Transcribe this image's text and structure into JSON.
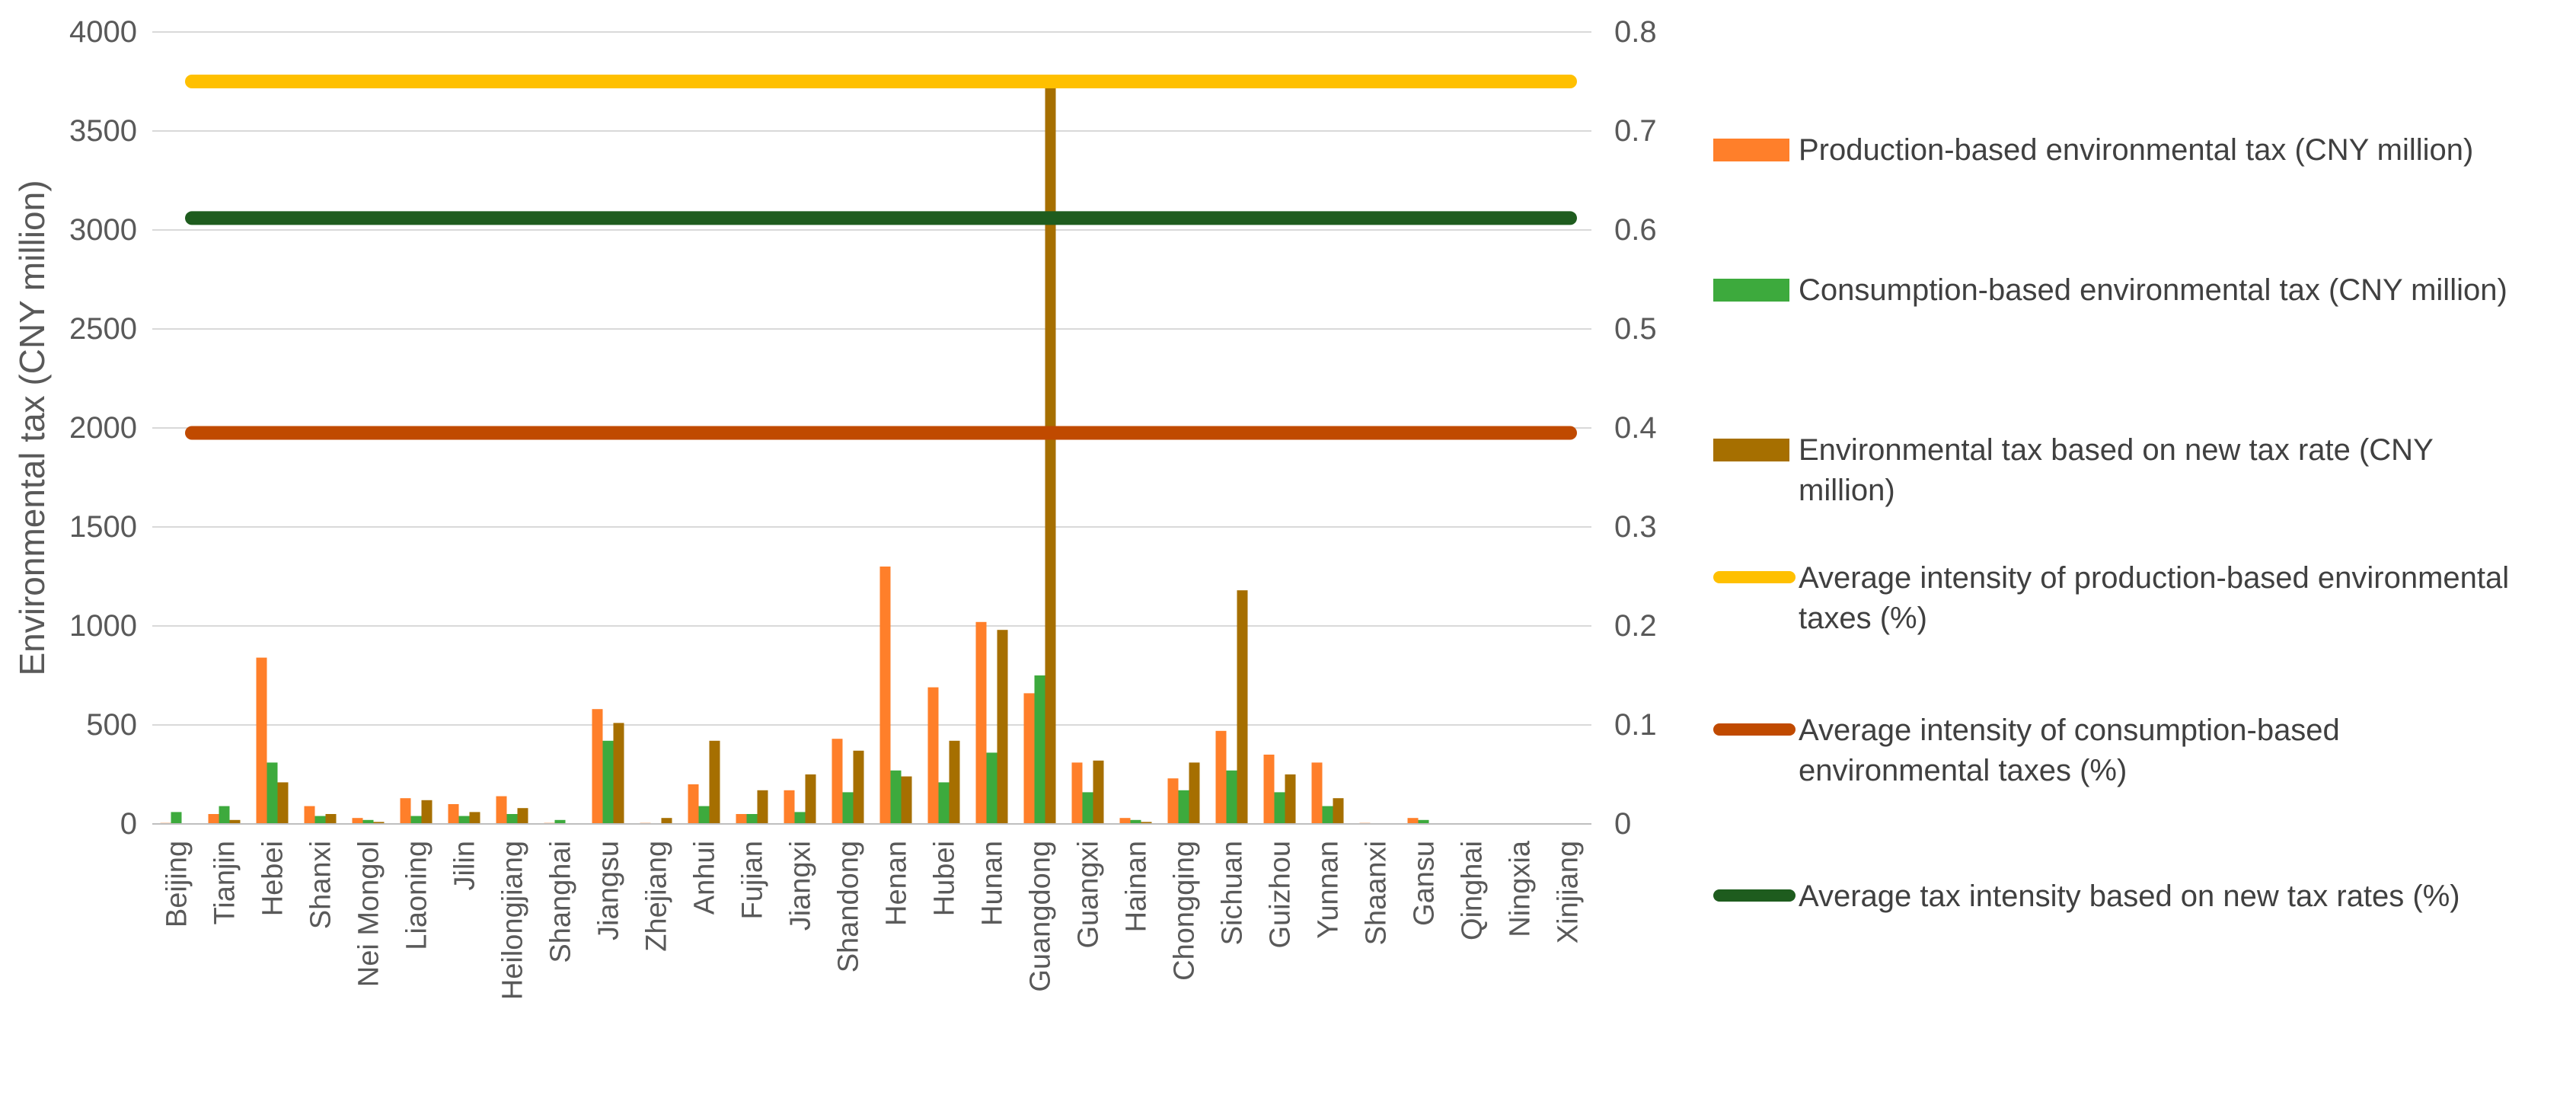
{
  "chart_data": {
    "type": "bar",
    "ylabel": "Environmental tax (CNY million)",
    "ylim": [
      0,
      4000
    ],
    "yticks": [
      0,
      500,
      1000,
      1500,
      2000,
      2500,
      3000,
      3500,
      4000
    ],
    "y2lim": [
      0,
      0.8
    ],
    "y2ticks": [
      "0",
      "0.1",
      "0.2",
      "0.3",
      "0.4",
      "0.5",
      "0.6",
      "0.7",
      "0.8"
    ],
    "categories": [
      "Beijing",
      "Tianjin",
      "Hebei",
      "Shanxi",
      "Nei Mongol",
      "Liaoning",
      "Jilin",
      "Heilongjiang",
      "Shanghai",
      "Jiangsu",
      "Zhejiang",
      "Anhui",
      "Fujian",
      "Jiangxi",
      "Shandong",
      "Henan",
      "Hubei",
      "Hunan",
      "Guangdong",
      "Guangxi",
      "Hainan",
      "Chongqing",
      "Sichuan",
      "Guizhou",
      "Yunnan",
      "Shaanxi",
      "Gansu",
      "Qinghai",
      "Ningxia",
      "Xinjiang"
    ],
    "series": [
      {
        "name": "Production-based environmental tax (CNY million)",
        "color": "#FF7F2A",
        "values": [
          5,
          50,
          840,
          90,
          30,
          130,
          100,
          140,
          5,
          580,
          5,
          200,
          50,
          170,
          430,
          1300,
          690,
          1020,
          660,
          310,
          30,
          230,
          470,
          350,
          310,
          5,
          30,
          0,
          0,
          0
        ]
      },
      {
        "name": "Consumption-based environmental tax (CNY million)",
        "color": "#3DAA3D",
        "values": [
          60,
          90,
          310,
          40,
          20,
          40,
          40,
          50,
          20,
          420,
          0,
          90,
          50,
          60,
          160,
          270,
          210,
          360,
          750,
          160,
          20,
          170,
          270,
          160,
          90,
          0,
          20,
          0,
          0,
          0
        ]
      },
      {
        "name": "Environmental tax based on new tax rate (CNY million)",
        "color": "#A66F00",
        "values": [
          0,
          20,
          210,
          50,
          10,
          120,
          60,
          80,
          0,
          510,
          30,
          420,
          170,
          250,
          370,
          240,
          420,
          980,
          3720,
          320,
          10,
          310,
          1180,
          250,
          130,
          0,
          0,
          0,
          0,
          0
        ]
      }
    ],
    "lines": [
      {
        "name": "Average intensity of production-based environmental taxes (%)",
        "color": "#FFC000",
        "value": 0.75
      },
      {
        "name": "Average intensity of consumption-based environmental taxes (%)",
        "color": "#C04A00",
        "value": 0.395
      },
      {
        "name": "Average tax intensity based on new tax rates (%)",
        "color": "#1E5C1E",
        "value": 0.612
      }
    ],
    "legend_position": "right",
    "legend_lines": [
      [
        "Production-based environmental tax (CNY million)"
      ],
      [
        "Consumption-based environmental tax (CNY million)"
      ],
      [
        "Environmental tax based on new tax rate (CNY",
        "million)"
      ],
      [
        "Average intensity of production-based environmental",
        "taxes (%)"
      ],
      [
        "Average intensity of consumption-based",
        "environmental taxes (%)"
      ],
      [
        "Average tax intensity based on new tax rates (%)"
      ]
    ]
  }
}
